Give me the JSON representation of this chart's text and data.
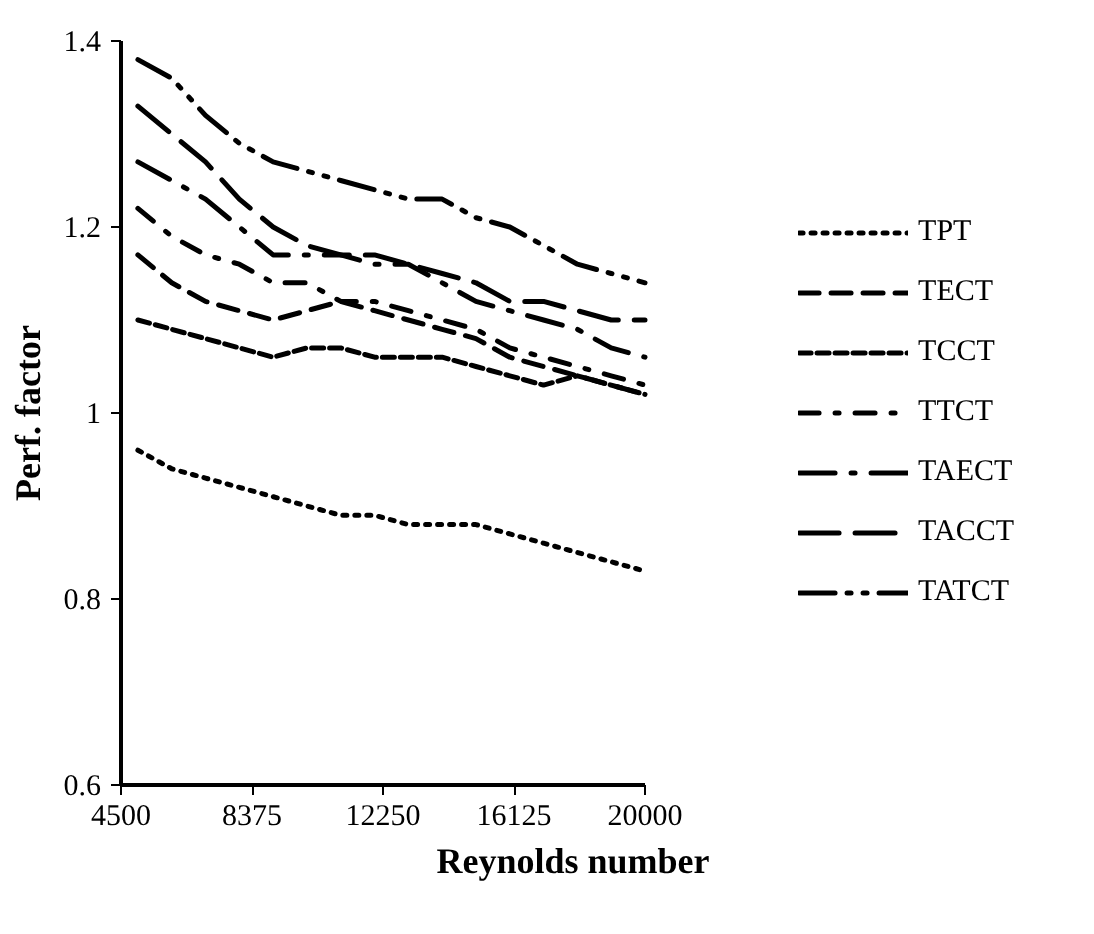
{
  "chart_data": {
    "type": "line",
    "xlabel": "Reynolds number",
    "ylabel": "Perf. factor",
    "x": [
      5000,
      6000,
      7000,
      8000,
      9000,
      10000,
      11000,
      12000,
      13000,
      14000,
      15000,
      16000,
      17000,
      18000,
      19000,
      20000
    ],
    "xlim": [
      4500,
      20000
    ],
    "xticks": [
      4500,
      8375,
      12250,
      16125,
      20000
    ],
    "ylim": [
      0.6,
      1.4
    ],
    "yticks": [
      0.6,
      0.8,
      1,
      1.2,
      1.4
    ],
    "grid": false,
    "legend": "right",
    "marker": "none",
    "series": [
      {
        "name": "TPT",
        "color": "#000000",
        "line_style": "dotted",
        "values": [
          0.96,
          0.94,
          0.93,
          0.92,
          0.91,
          0.9,
          0.89,
          0.89,
          0.88,
          0.88,
          0.88,
          0.87,
          0.86,
          0.85,
          0.84,
          0.83
        ]
      },
      {
        "name": "TECT",
        "color": "#000000",
        "line_style": "dashed",
        "values": [
          1.17,
          1.14,
          1.12,
          1.11,
          1.1,
          1.11,
          1.12,
          1.11,
          1.1,
          1.09,
          1.08,
          1.06,
          1.05,
          1.04,
          1.03,
          1.02
        ]
      },
      {
        "name": "TCCT",
        "color": "#000000",
        "line_style": "shortdash",
        "values": [
          1.1,
          1.09,
          1.08,
          1.07,
          1.06,
          1.07,
          1.07,
          1.06,
          1.06,
          1.06,
          1.05,
          1.04,
          1.03,
          1.04,
          1.03,
          1.02
        ]
      },
      {
        "name": "TTCT",
        "color": "#000000",
        "line_style": "dashdot",
        "values": [
          1.22,
          1.19,
          1.17,
          1.16,
          1.14,
          1.14,
          1.12,
          1.12,
          1.11,
          1.1,
          1.09,
          1.07,
          1.06,
          1.05,
          1.04,
          1.03
        ]
      },
      {
        "name": "TAECT",
        "color": "#000000",
        "line_style": "longdashdot",
        "values": [
          1.27,
          1.25,
          1.23,
          1.2,
          1.17,
          1.17,
          1.17,
          1.16,
          1.16,
          1.14,
          1.12,
          1.11,
          1.1,
          1.09,
          1.07,
          1.06
        ]
      },
      {
        "name": "TACCT",
        "color": "#000000",
        "line_style": "longdash",
        "values": [
          1.33,
          1.3,
          1.27,
          1.23,
          1.2,
          1.18,
          1.17,
          1.17,
          1.16,
          1.15,
          1.14,
          1.12,
          1.12,
          1.11,
          1.1,
          1.1
        ]
      },
      {
        "name": "TATCT",
        "color": "#000000",
        "line_style": "longdashdotdot",
        "values": [
          1.38,
          1.36,
          1.32,
          1.29,
          1.27,
          1.26,
          1.25,
          1.24,
          1.23,
          1.23,
          1.21,
          1.2,
          1.18,
          1.16,
          1.15,
          1.14
        ]
      }
    ]
  }
}
